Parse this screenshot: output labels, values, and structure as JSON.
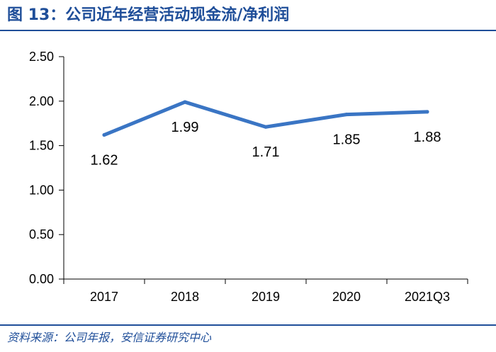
{
  "header": {
    "title": "图 13：公司近年经营活动现金流/净利润"
  },
  "footer": {
    "source": "资料来源：公司年报，安信证券研究中心"
  },
  "colors": {
    "brand": "#1f4e99",
    "line": "#3a75c4"
  },
  "chart_data": {
    "type": "line",
    "title": "",
    "xlabel": "",
    "ylabel": "",
    "categories": [
      "2017",
      "2018",
      "2019",
      "2020",
      "2021Q3"
    ],
    "series": [
      {
        "values": [
          1.62,
          1.99,
          1.71,
          1.85,
          1.88
        ]
      }
    ],
    "data_labels": [
      "1.62",
      "1.99",
      "1.71",
      "1.85",
      "1.88"
    ],
    "ylim": [
      0,
      2.5
    ],
    "yticks": [
      0.0,
      0.5,
      1.0,
      1.5,
      2.0,
      2.5
    ],
    "ytick_labels": [
      "0.00",
      "0.50",
      "1.00",
      "1.50",
      "2.00",
      "2.50"
    ],
    "grid": false,
    "legend": "none"
  }
}
